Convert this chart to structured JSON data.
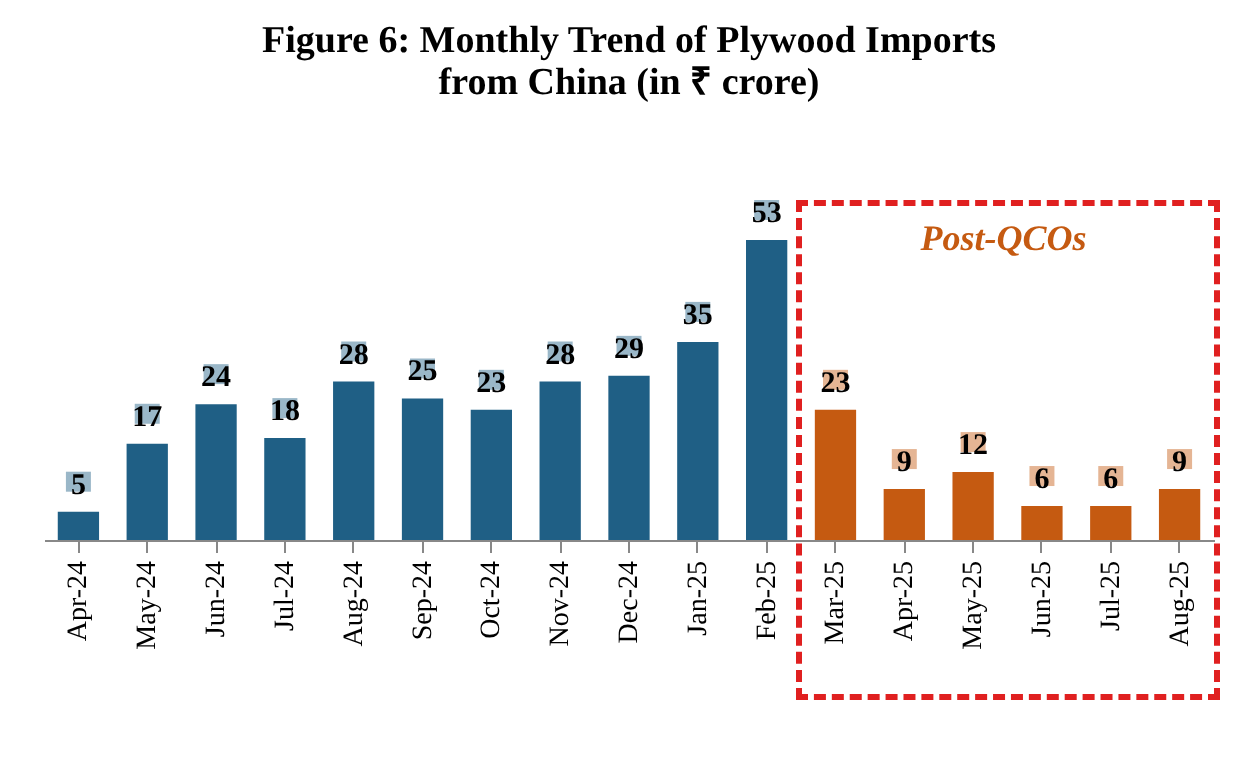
{
  "chart_data": {
    "type": "bar",
    "title": [
      "Figure 6: Monthly Trend of Plywood Imports",
      "from China (in ₹ crore)"
    ],
    "categories": [
      "Apr-24",
      "May-24",
      "Jun-24",
      "Jul-24",
      "Aug-24",
      "Sep-24",
      "Oct-24",
      "Nov-24",
      "Dec-24",
      "Jan-25",
      "Feb-25",
      "Mar-25",
      "Apr-25",
      "May-25",
      "Jun-25",
      "Jul-25",
      "Aug-25"
    ],
    "values": [
      5,
      17,
      24,
      18,
      28,
      25,
      23,
      28,
      29,
      35,
      53,
      23,
      9,
      12,
      6,
      6,
      9
    ],
    "colors": [
      "#1f5f85",
      "#1f5f85",
      "#1f5f85",
      "#1f5f85",
      "#1f5f85",
      "#1f5f85",
      "#1f5f85",
      "#1f5f85",
      "#1f5f85",
      "#1f5f85",
      "#1f5f85",
      "#c55a11",
      "#c55a11",
      "#c55a11",
      "#c55a11",
      "#c55a11",
      "#c55a11"
    ],
    "data_labels": true,
    "annotations": [
      "Post-QCOs"
    ]
  }
}
